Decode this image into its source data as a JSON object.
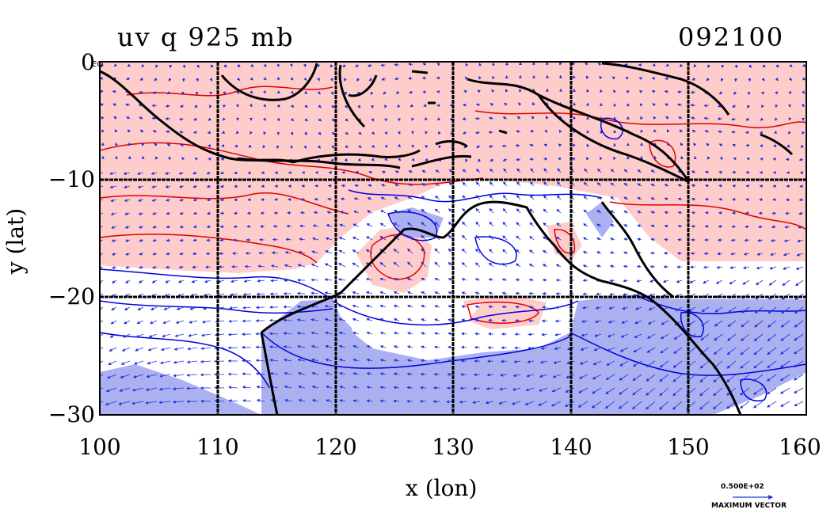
{
  "title": "uv q 925 mb",
  "date_code": "092100",
  "xlabel": "x (lon)",
  "ylabel": "y (lat)",
  "equator_label": "EQ",
  "x_ticks": [
    "100",
    "110",
    "120",
    "130",
    "140",
    "150",
    "160"
  ],
  "y_ticks": [
    "0",
    "−10",
    "−20",
    "−30"
  ],
  "reference_vector": {
    "value": "0.500E+02",
    "label": "MAXIMUM VECTOR"
  },
  "colors": {
    "positive_fill": "#ffcccc",
    "negative_fill": "#aab0f0",
    "positive_contour": "#e00000",
    "negative_contour": "#0000e0",
    "coastline": "#000000",
    "vectors": "#2030e0"
  },
  "chart_data": {
    "type": "map",
    "x_range": [
      100,
      160
    ],
    "y_range": [
      -30,
      0
    ],
    "grid_lines_x": [
      110,
      120,
      130,
      140,
      150
    ],
    "grid_lines_y": [
      -10,
      -20
    ]
  }
}
